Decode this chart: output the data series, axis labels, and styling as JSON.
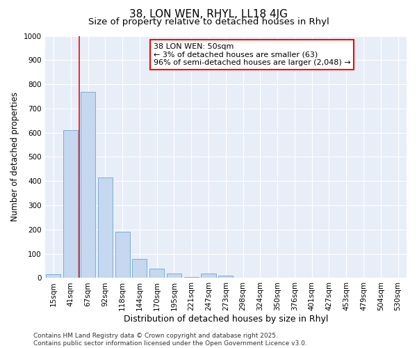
{
  "title": "38, LON WEN, RHYL, LL18 4JG",
  "subtitle": "Size of property relative to detached houses in Rhyl",
  "xlabel": "Distribution of detached houses by size in Rhyl",
  "ylabel": "Number of detached properties",
  "categories": [
    "15sqm",
    "41sqm",
    "67sqm",
    "92sqm",
    "118sqm",
    "144sqm",
    "170sqm",
    "195sqm",
    "221sqm",
    "247sqm",
    "273sqm",
    "298sqm",
    "324sqm",
    "350sqm",
    "376sqm",
    "401sqm",
    "427sqm",
    "453sqm",
    "479sqm",
    "504sqm",
    "530sqm"
  ],
  "values": [
    15,
    610,
    770,
    415,
    190,
    78,
    40,
    18,
    5,
    18,
    10,
    0,
    0,
    0,
    0,
    0,
    0,
    0,
    0,
    0,
    0
  ],
  "bar_color": "#c5d8f0",
  "bar_edge_color": "#7aadd4",
  "annotation_text_line1": "38 LON WEN: 50sqm",
  "annotation_text_line2": "← 3% of detached houses are smaller (63)",
  "annotation_text_line3": "96% of semi-detached houses are larger (2,048) →",
  "red_line_x": 1.5,
  "ylim": [
    0,
    1000
  ],
  "yticks": [
    0,
    100,
    200,
    300,
    400,
    500,
    600,
    700,
    800,
    900,
    1000
  ],
  "fig_bg_color": "#ffffff",
  "plot_bg_color": "#e8eef8",
  "grid_color": "#ffffff",
  "footer": "Contains HM Land Registry data © Crown copyright and database right 2025.\nContains public sector information licensed under the Open Government Licence v3.0.",
  "title_fontsize": 11,
  "subtitle_fontsize": 9.5,
  "xlabel_fontsize": 9,
  "ylabel_fontsize": 8.5,
  "tick_fontsize": 7.5,
  "annotation_fontsize": 8,
  "footer_fontsize": 6.5
}
